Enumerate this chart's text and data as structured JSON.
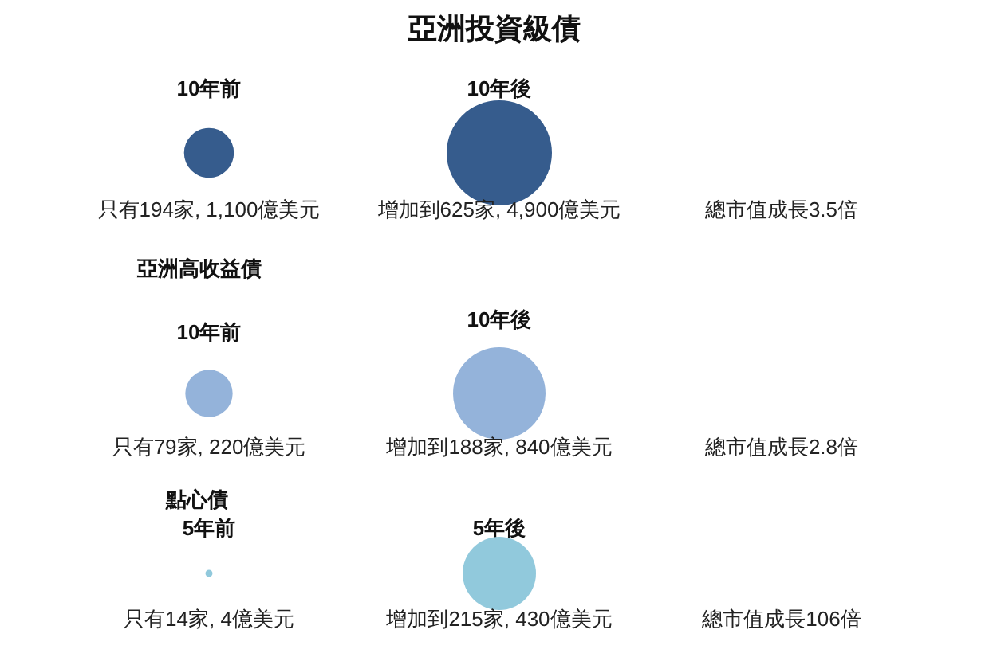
{
  "chart_data": [
    {
      "type": "other",
      "title": "亞洲投資級債",
      "categories": [
        "10年前",
        "10年後"
      ],
      "values": [
        1100,
        4900
      ],
      "value_labels": [
        "只有194家, 1,100億美元",
        "增加到625家, 4,900億美元"
      ],
      "colors": [
        "#365c8d",
        "#365c8d"
      ],
      "annotations": [
        "總市值成長3.5倍"
      ]
    },
    {
      "type": "other",
      "title": "亞洲高收益債",
      "categories": [
        "10年前",
        "10年後"
      ],
      "values": [
        220,
        840
      ],
      "value_labels": [
        "只有79家, 220億美元",
        "增加到188家, 840億美元"
      ],
      "colors": [
        "#94b3da",
        "#94b3da"
      ],
      "annotations": [
        "總市值成長2.8倍"
      ]
    },
    {
      "type": "other",
      "title": "點心債",
      "categories": [
        "5年前",
        "5年後"
      ],
      "values": [
        4,
        430
      ],
      "value_labels": [
        "只有14家, 4億美元",
        "增加到215家, 430億美元"
      ],
      "colors": [
        "#91c9dc",
        "#91c9dc"
      ],
      "annotations": [
        "總市值成長106倍"
      ]
    }
  ]
}
